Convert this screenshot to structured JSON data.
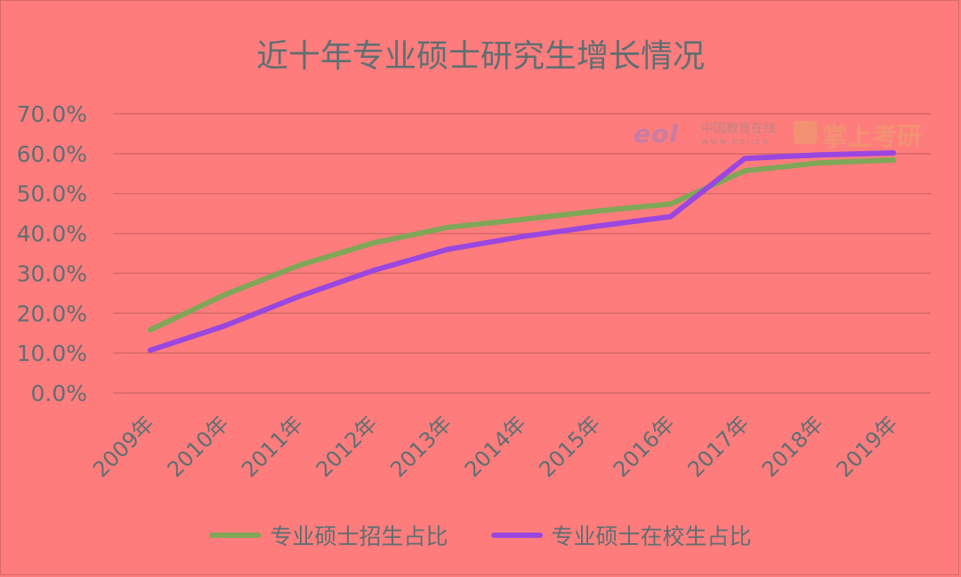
{
  "chart_data": {
    "type": "line",
    "title": "近十年专业硕士研究生增长情况",
    "categories": [
      "2009年",
      "2010年",
      "2011年",
      "2012年",
      "2013年",
      "2014年",
      "2015年",
      "2016年",
      "2017年",
      "2018年",
      "2019年"
    ],
    "series": [
      {
        "name": "专业硕士招生占比",
        "color": "#7fa757",
        "values": [
          15.8,
          24.6,
          32.0,
          37.6,
          41.5,
          43.5,
          45.6,
          47.4,
          55.7,
          57.7,
          58.4
        ]
      },
      {
        "name": "专业硕士在校生占比",
        "color": "#9a47e0",
        "values": [
          10.7,
          16.8,
          24.2,
          30.7,
          36.0,
          39.2,
          41.8,
          44.2,
          58.8,
          59.7,
          60.2
        ]
      }
    ],
    "yticks": [
      "0.0%",
      "10.0%",
      "20.0%",
      "30.0%",
      "40.0%",
      "50.0%",
      "60.0%",
      "70.0%"
    ],
    "ylim": [
      0,
      70
    ],
    "grid": true,
    "legend": "bottom"
  },
  "watermark": {
    "logo_text": "eol",
    "org_name": "中国教育在线",
    "url": "www.eol.cn",
    "brand": "掌上考研",
    "brand_color": "#e9a46a"
  },
  "colors": {
    "background": "#ff7c7c",
    "text": "#5e6f73",
    "grid": "#d46a6a"
  }
}
